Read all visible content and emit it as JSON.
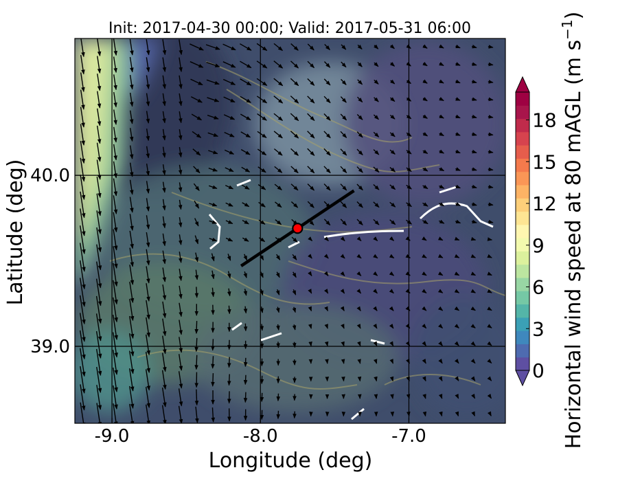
{
  "chart_data": {
    "type": "heatmap",
    "title": "Init: 2017-04-30 00:00; Valid: 2017-05-31 06:00",
    "xlabel": "Longitude (deg)",
    "ylabel": "Latitude (deg)",
    "xlim": [
      -9.25,
      -6.35
    ],
    "ylim": [
      38.55,
      40.8
    ],
    "x_ticks": [
      {
        "value": -9.0,
        "label": "-9.0"
      },
      {
        "value": -8.0,
        "label": "-8.0"
      },
      {
        "value": -7.0,
        "label": "-7.0"
      }
    ],
    "y_ticks": [
      {
        "value": 40.0,
        "label": "40.0"
      },
      {
        "value": 39.0,
        "label": "39.0"
      }
    ],
    "grid": true,
    "colorbar": {
      "label": "Horizontal wind speed at 80 mAGL (m s",
      "label_superscript": "−1",
      "label_close": ")",
      "range": [
        0,
        20
      ],
      "extend": "both",
      "ticks": [
        {
          "value": 0,
          "label": "0"
        },
        {
          "value": 3,
          "label": "3"
        },
        {
          "value": 6,
          "label": "6"
        },
        {
          "value": 9,
          "label": "9"
        },
        {
          "value": 12,
          "label": "12"
        },
        {
          "value": 15,
          "label": "15"
        },
        {
          "value": 18,
          "label": "18"
        }
      ],
      "colors": [
        "#5e4fa2",
        "#4e6bb0",
        "#3f88bd",
        "#3ba0b6",
        "#54b5a8",
        "#75c8a5",
        "#98d6a4",
        "#bce5a0",
        "#dcf19d",
        "#f3faae",
        "#fff6b0",
        "#fee593",
        "#fdcf7a",
        "#fdb365",
        "#fa9656",
        "#f47a4c",
        "#e65d4c",
        "#d6434e",
        "#c02b4b",
        "#a8154b",
        "#9e0142"
      ]
    },
    "transect": {
      "start": {
        "lon": -8.13,
        "lat": 39.47
      },
      "end": {
        "lon": -7.37,
        "lat": 39.91
      },
      "point": {
        "lon": -7.75,
        "lat": 39.69
      }
    },
    "wind_field": {
      "lon_range": [
        -9.2,
        -6.45
      ],
      "lat_range": [
        38.6,
        40.75
      ],
      "nx": 26,
      "ny": 22,
      "note": "wind vectors mostly southward/south-easterly in west, weak elsewhere"
    }
  }
}
